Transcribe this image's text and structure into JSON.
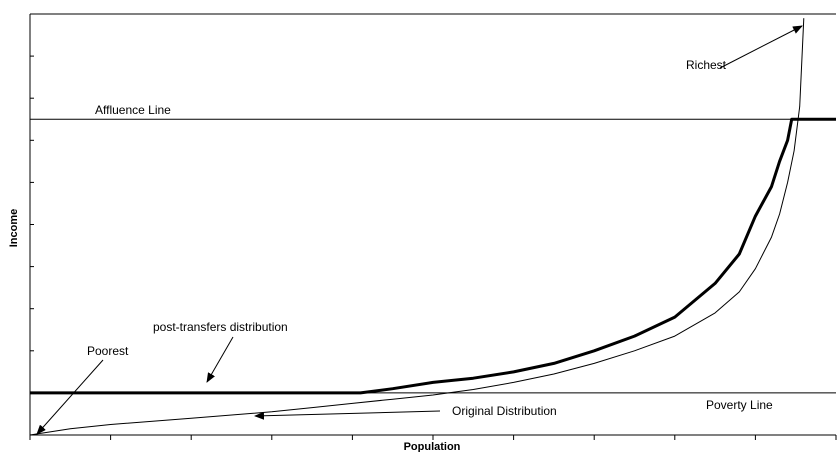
{
  "chart_data": {
    "type": "line",
    "title": "",
    "xlabel": "Population",
    "ylabel": "Income",
    "grid": false,
    "xlim": [
      0,
      100
    ],
    "ylim": [
      0,
      100
    ],
    "reference_lines": [
      {
        "name": "Affluence Line",
        "y": 75
      },
      {
        "name": "Poverty Line",
        "y": 10
      }
    ],
    "series": [
      {
        "x": [
          0,
          5,
          10,
          20,
          30,
          35,
          40,
          45,
          50,
          55,
          60,
          65,
          70,
          75,
          80,
          85,
          88,
          90,
          92,
          93,
          94,
          94.8,
          95.5,
          96
        ],
        "values": [
          0,
          1.5,
          2.5,
          4,
          5.5,
          6.5,
          7.5,
          8.5,
          9.5,
          10.8,
          12.5,
          14.5,
          17,
          20,
          23.5,
          29,
          34,
          39.5,
          47,
          52.5,
          60,
          67.5,
          78,
          99
        ]
      },
      {
        "x": [
          0,
          41,
          45,
          50,
          55,
          60,
          65,
          70,
          75,
          80,
          85,
          88,
          90,
          92,
          93,
          94,
          94.5,
          100
        ],
        "values": [
          10,
          10,
          11,
          12.5,
          13.5,
          15,
          17,
          20,
          23.5,
          28,
          36,
          43,
          52,
          59,
          65,
          70,
          75,
          75
        ]
      }
    ],
    "annotations": [
      {
        "text": "Richest"
      },
      {
        "text": "post-transfers distribution"
      },
      {
        "text": "Poorest"
      },
      {
        "text": "Original Distribution"
      }
    ]
  }
}
